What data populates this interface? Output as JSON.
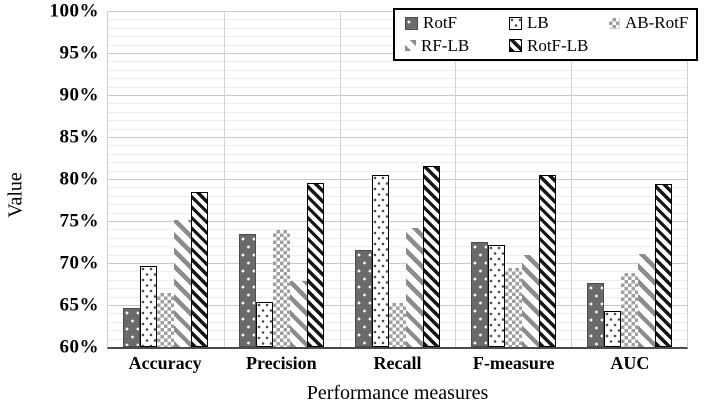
{
  "chart_data": {
    "type": "bar",
    "title": "",
    "xlabel": "Performance measures",
    "ylabel": "Value",
    "ylim": [
      60,
      100
    ],
    "y_major_step": 5,
    "y_minor_step": 1,
    "y_tick_suffix": "%",
    "y_tick_labels": [
      "100%",
      "95%",
      "90%",
      "85%",
      "80%",
      "75%",
      "70%",
      "65%",
      "60%"
    ],
    "grid": "horizontal major (5%) and minor (1%) lines on; vertical lines at category boundaries",
    "legend_position": "top-right inside plot, 2 rows, black border",
    "categories": [
      "Accuracy",
      "Precision",
      "Recall",
      "F-measure",
      "AUC"
    ],
    "series": [
      {
        "name": "RotF",
        "pattern": "dark-gray-with-white-dots",
        "values": [
          64.7,
          73.5,
          71.6,
          72.5,
          67.6
        ]
      },
      {
        "name": "LB",
        "pattern": "white-with-dark-dots-black-border",
        "values": [
          69.7,
          65.3,
          80.5,
          72.1,
          64.3
        ]
      },
      {
        "name": "AB-RotF",
        "pattern": "light-gray-checkerboard",
        "values": [
          66.4,
          73.9,
          65.2,
          69.4,
          68.8
        ]
      },
      {
        "name": "RF-LB",
        "pattern": "gray-wide-diagonal-stripes",
        "values": [
          75.1,
          67.8,
          74.2,
          71.0,
          71.1
        ]
      },
      {
        "name": "RotF-LB",
        "pattern": "black-diagonal-stripes-black-border",
        "values": [
          78.4,
          79.5,
          81.6,
          80.5,
          79.4
        ]
      }
    ],
    "colors": {
      "bar_dark_gray": "#6a6a6a",
      "stripe_gray": "#8c8c8c",
      "stripe_black": "#161616",
      "checker_gray": "#9f9f9f",
      "grid_major": "#c9c9c9",
      "grid_minor": "#ededed",
      "axis_line": "#4a4a4a",
      "text": "#000000"
    }
  }
}
